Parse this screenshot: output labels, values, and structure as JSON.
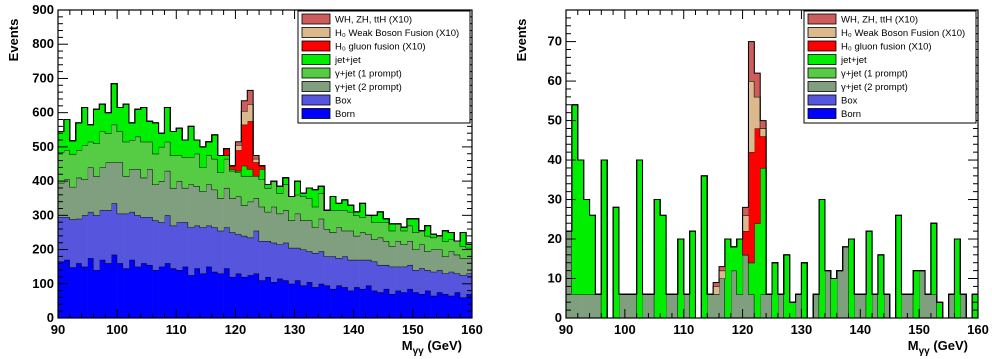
{
  "chart_data": [
    {
      "type": "histogram-stacked",
      "ylabel": "Events",
      "xlabel": "M",
      "xlabel_sub": "γγ",
      "xlabel_unit": "(GeV)",
      "xlim": [
        90,
        160
      ],
      "ylim": [
        0,
        900
      ],
      "x_ticks": [
        90,
        100,
        110,
        120,
        130,
        140,
        150,
        160
      ],
      "y_ticks": [
        0,
        100,
        200,
        300,
        400,
        500,
        600,
        700,
        800,
        900
      ],
      "bin_width": 1,
      "legend_position": "top-right",
      "legend": [
        {
          "label": "WH, ZH, ttH (X10)",
          "color": "#cd5c5c"
        },
        {
          "label": "H₀ Weak Boson Fusion (X10)",
          "color": "#dbb98c"
        },
        {
          "label": "H₀ gluon fusion (X10)",
          "color": "#ff0000"
        },
        {
          "label": "jet+jet",
          "color": "#00ee00"
        },
        {
          "label": "γ+jet (1 prompt)",
          "color": "#55cc44"
        },
        {
          "label": "γ+jet (2 prompt)",
          "color": "#7f9f7f"
        },
        {
          "label": "Box",
          "color": "#5555dd"
        },
        {
          "label": "Born",
          "color": "#0000ff"
        }
      ],
      "series_stack_order": [
        "Born",
        "Box",
        "γ+jet (2 prompt)",
        "γ+jet (1 prompt)",
        "jet+jet",
        "H₀ gluon fusion (X10)",
        "H₀ Weak Boson Fusion (X10)",
        "WH, ZH, ttH (X10)"
      ],
      "series": [
        {
          "name": "Born",
          "color": "#0000ff",
          "values": [
            165,
            170,
            148,
            160,
            150,
            175,
            140,
            170,
            160,
            185,
            160,
            145,
            170,
            150,
            160,
            155,
            140,
            150,
            160,
            145,
            140,
            150,
            125,
            145,
            130,
            150,
            135,
            130,
            145,
            120,
            130,
            120,
            125,
            130,
            110,
            120,
            105,
            115,
            110,
            100,
            110,
            95,
            105,
            90,
            100,
            95,
            85,
            95,
            90,
            80,
            90,
            85,
            95,
            80,
            75,
            85,
            70,
            80,
            75,
            85,
            75,
            70,
            80,
            65,
            75,
            70,
            65,
            75,
            60,
            70
          ]
        },
        {
          "name": "Box",
          "color": "#5555dd",
          "values": [
            130,
            125,
            140,
            130,
            150,
            135,
            160,
            145,
            155,
            150,
            145,
            160,
            140,
            150,
            135,
            140,
            145,
            130,
            140,
            125,
            140,
            130,
            140,
            125,
            135,
            120,
            130,
            125,
            120,
            130,
            115,
            120,
            110,
            125,
            115,
            105,
            115,
            100,
            110,
            105,
            95,
            105,
            90,
            100,
            95,
            85,
            95,
            80,
            90,
            90,
            80,
            85,
            75,
            85,
            80,
            70,
            80,
            70,
            75,
            70,
            65,
            75,
            60,
            70,
            65,
            60,
            70,
            55,
            65,
            60
          ]
        },
        {
          "name": "γ+jet (2 prompt)",
          "color": "#7f9f7f",
          "values": [
            100,
            110,
            95,
            120,
            105,
            130,
            115,
            125,
            140,
            120,
            150,
            110,
            125,
            135,
            115,
            140,
            105,
            120,
            130,
            110,
            120,
            100,
            125,
            115,
            105,
            120,
            110,
            95,
            115,
            100,
            110,
            90,
            105,
            95,
            100,
            85,
            105,
            90,
            95,
            80,
            100,
            85,
            90,
            75,
            95,
            80,
            70,
            90,
            75,
            85,
            70,
            80,
            75,
            65,
            80,
            70,
            60,
            75,
            65,
            70,
            60,
            70,
            55,
            65,
            60,
            50,
            60,
            55,
            50,
            45
          ]
        },
        {
          "name": "γ+jet (1 prompt)",
          "color": "#55cc44",
          "values": [
            90,
            85,
            95,
            80,
            100,
            75,
            95,
            105,
            85,
            110,
            90,
            100,
            85,
            95,
            105,
            80,
            90,
            100,
            85,
            95,
            75,
            90,
            80,
            95,
            70,
            85,
            90,
            75,
            85,
            80,
            70,
            85,
            75,
            65,
            80,
            70,
            75,
            60,
            75,
            70,
            55,
            70,
            65,
            60,
            75,
            55,
            65,
            50,
            60,
            55,
            60,
            45,
            55,
            50,
            45,
            55,
            45,
            50,
            40,
            45,
            50,
            40,
            45,
            35,
            40,
            45,
            35,
            40,
            35,
            30
          ]
        },
        {
          "name": "jet+jet",
          "color": "#00ee00",
          "values": [
            60,
            90,
            40,
            80,
            110,
            50,
            100,
            80,
            60,
            120,
            70,
            110,
            50,
            80,
            100,
            60,
            90,
            40,
            100,
            70,
            80,
            50,
            90,
            40,
            60,
            40,
            70,
            50,
            10,
            5,
            5,
            30,
            20,
            0,
            30,
            10,
            0,
            20,
            20,
            0,
            40,
            10,
            30,
            50,
            20,
            0,
            40,
            20,
            30,
            20,
            10,
            40,
            0,
            20,
            30,
            10,
            20,
            0,
            10,
            20,
            40,
            0,
            30,
            10,
            0,
            30,
            20,
            0,
            40,
            10
          ]
        },
        {
          "name": "H₀ gluon fusion (X10)",
          "color": "#ff0000",
          "values": [
            0,
            0,
            0,
            0,
            0,
            0,
            0,
            0,
            0,
            0,
            0,
            0,
            0,
            0,
            0,
            0,
            0,
            0,
            0,
            0,
            0,
            0,
            0,
            0,
            0,
            0,
            0,
            0,
            20,
            10,
            60,
            120,
            140,
            40,
            10,
            0,
            0,
            0,
            0,
            0,
            0,
            0,
            0,
            0,
            0,
            0,
            0,
            0,
            0,
            0,
            0,
            0,
            0,
            0,
            0,
            0,
            0,
            0,
            0,
            0,
            0,
            0,
            0,
            0,
            0,
            0,
            0,
            0,
            0,
            0
          ]
        },
        {
          "name": "H₀ Weak Boson Fusion (X10)",
          "color": "#dbb98c",
          "values": [
            0,
            0,
            0,
            0,
            0,
            0,
            0,
            0,
            0,
            0,
            0,
            0,
            0,
            0,
            0,
            0,
            0,
            0,
            0,
            0,
            0,
            0,
            0,
            0,
            0,
            0,
            0,
            0,
            0,
            0,
            15,
            40,
            50,
            10,
            0,
            0,
            0,
            0,
            0,
            0,
            0,
            0,
            0,
            0,
            0,
            0,
            0,
            0,
            0,
            0,
            0,
            0,
            0,
            0,
            0,
            0,
            0,
            0,
            0,
            0,
            0,
            0,
            0,
            0,
            0,
            0,
            0,
            0,
            0,
            0
          ]
        },
        {
          "name": "WH, ZH, ttH (X10)",
          "color": "#cd5c5c",
          "values": [
            0,
            0,
            0,
            0,
            0,
            0,
            0,
            0,
            0,
            0,
            0,
            0,
            0,
            0,
            0,
            0,
            0,
            0,
            0,
            0,
            0,
            0,
            0,
            0,
            0,
            0,
            0,
            0,
            0,
            0,
            10,
            30,
            40,
            10,
            0,
            0,
            0,
            0,
            0,
            0,
            0,
            0,
            0,
            0,
            0,
            0,
            0,
            0,
            0,
            0,
            0,
            0,
            0,
            0,
            0,
            0,
            0,
            0,
            0,
            0,
            0,
            0,
            0,
            0,
            0,
            0,
            0,
            0,
            0,
            0
          ]
        }
      ]
    },
    {
      "type": "histogram-stacked",
      "ylabel": "Events",
      "xlabel": "M",
      "xlabel_sub": "γγ",
      "xlabel_unit": "(GeV)",
      "xlim": [
        90,
        160
      ],
      "ylim": [
        0,
        78
      ],
      "x_ticks": [
        90,
        100,
        110,
        120,
        130,
        140,
        150,
        160
      ],
      "y_ticks": [
        0,
        10,
        20,
        30,
        40,
        50,
        60,
        70
      ],
      "bin_width": 1,
      "legend_position": "top-right",
      "legend": [
        {
          "label": "WH, ZH, ttH (X10)",
          "color": "#cd5c5c"
        },
        {
          "label": "H₀ Weak Boson Fusion (X10)",
          "color": "#dbb98c"
        },
        {
          "label": "H₀ gluon fusion (X10)",
          "color": "#ff0000"
        },
        {
          "label": "jet+jet",
          "color": "#00ee00"
        },
        {
          "label": "γ+jet (1 prompt)",
          "color": "#55cc44"
        },
        {
          "label": "γ+jet (2 prompt)",
          "color": "#7f9f7f"
        },
        {
          "label": "Box",
          "color": "#5555dd"
        },
        {
          "label": "Born",
          "color": "#0000ff"
        }
      ],
      "series_stack_order": [
        "γ+jet (2 prompt)",
        "jet+jet",
        "H₀ gluon fusion (X10)",
        "H₀ Weak Boson Fusion (X10)",
        "WH, ZH, ttH (X10)"
      ],
      "series": [
        {
          "name": "γ+jet (2 prompt)",
          "color": "#7f9f7f",
          "values": [
            22,
            6,
            6,
            6,
            6,
            6,
            0,
            0,
            0,
            6,
            6,
            6,
            0,
            6,
            6,
            0,
            0,
            6,
            6,
            0,
            6,
            0,
            0,
            0,
            6,
            6,
            10,
            0,
            12,
            6,
            16,
            6,
            0,
            6,
            6,
            0,
            6,
            0,
            0,
            6,
            0,
            0,
            6,
            0,
            12,
            0,
            12,
            18,
            0,
            6,
            6,
            0,
            6,
            0,
            6,
            0,
            0,
            6,
            6,
            0,
            12,
            6,
            6,
            0,
            0,
            6,
            0,
            6,
            0,
            0
          ]
        },
        {
          "name": "jet+jet",
          "color": "#00ee00",
          "values": [
            0,
            48,
            34,
            24,
            20,
            0,
            40,
            0,
            28,
            0,
            0,
            0,
            40,
            0,
            0,
            30,
            26,
            0,
            0,
            20,
            0,
            22,
            0,
            36,
            0,
            0,
            0,
            20,
            6,
            14,
            0,
            8,
            24,
            32,
            0,
            14,
            0,
            16,
            4,
            0,
            14,
            0,
            0,
            30,
            0,
            10,
            0,
            0,
            20,
            0,
            0,
            22,
            0,
            16,
            0,
            0,
            26,
            0,
            0,
            12,
            0,
            0,
            18,
            4,
            0,
            0,
            20,
            0,
            0,
            6
          ]
        },
        {
          "name": "H₀ gluon fusion (X10)",
          "color": "#ff0000",
          "values": [
            0,
            0,
            0,
            0,
            0,
            0,
            0,
            0,
            0,
            0,
            0,
            0,
            0,
            0,
            0,
            0,
            0,
            0,
            0,
            0,
            0,
            0,
            0,
            0,
            0,
            0,
            0,
            0,
            0,
            0,
            6,
            28,
            24,
            8,
            0,
            0,
            0,
            0,
            0,
            0,
            0,
            0,
            0,
            0,
            0,
            0,
            0,
            0,
            0,
            0,
            0,
            0,
            0,
            0,
            0,
            0,
            0,
            0,
            0,
            0,
            0,
            0,
            0,
            0,
            0,
            0,
            0,
            0,
            0,
            0
          ]
        },
        {
          "name": "H₀ Weak Boson Fusion (X10)",
          "color": "#dbb98c",
          "values": [
            0,
            0,
            0,
            0,
            0,
            0,
            0,
            0,
            0,
            0,
            0,
            0,
            0,
            0,
            0,
            0,
            0,
            0,
            0,
            0,
            0,
            0,
            0,
            0,
            0,
            2,
            2,
            0,
            0,
            0,
            4,
            18,
            8,
            2,
            0,
            0,
            0,
            0,
            0,
            0,
            0,
            0,
            0,
            0,
            0,
            0,
            0,
            0,
            0,
            0,
            0,
            0,
            0,
            0,
            0,
            0,
            0,
            0,
            0,
            0,
            0,
            0,
            0,
            0,
            0,
            0,
            0,
            0,
            0,
            0
          ]
        },
        {
          "name": "WH, ZH, ttH (X10)",
          "color": "#cd5c5c",
          "values": [
            0,
            0,
            0,
            0,
            0,
            0,
            0,
            0,
            0,
            0,
            0,
            0,
            0,
            0,
            0,
            0,
            0,
            0,
            0,
            0,
            0,
            0,
            0,
            0,
            0,
            1,
            1,
            0,
            0,
            0,
            2,
            10,
            6,
            2,
            0,
            0,
            0,
            0,
            0,
            0,
            0,
            0,
            0,
            0,
            0,
            0,
            0,
            0,
            0,
            0,
            0,
            0,
            0,
            0,
            0,
            0,
            0,
            0,
            0,
            0,
            0,
            0,
            0,
            0,
            0,
            0,
            0,
            0,
            0,
            0
          ]
        }
      ]
    }
  ]
}
